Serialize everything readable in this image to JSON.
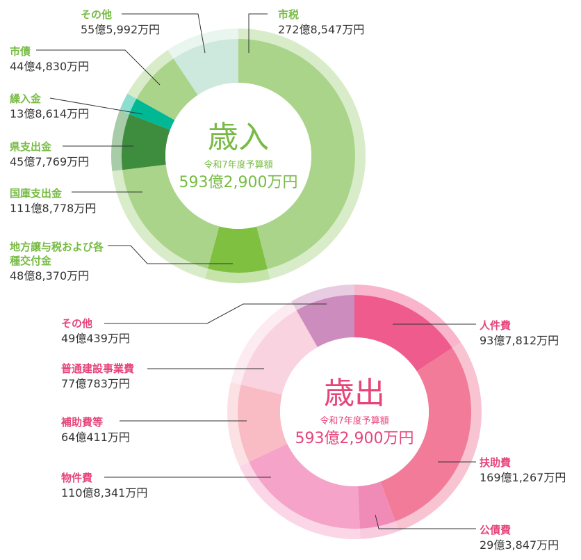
{
  "chart_data": [
    {
      "type": "pie",
      "title": "歳入",
      "subtitle": "令和7年度予算額",
      "total": "593億2,900万円",
      "accent": "#77bb44",
      "slices": [
        {
          "name": "市税",
          "amount": "272億8,547万円",
          "value": 2728547,
          "color": "#aad48a"
        },
        {
          "name": "地方譲与税および各種交付金",
          "amount": "48億8,370万円",
          "value": 488370,
          "color": "#80c041"
        },
        {
          "name": "国庫支出金",
          "amount": "111億8,778万円",
          "value": 1118778,
          "color": "#aad48a"
        },
        {
          "name": "県支出金",
          "amount": "45億7,769万円",
          "value": 457769,
          "color": "#3e8c3e"
        },
        {
          "name": "繰入金",
          "amount": "13億8,614万円",
          "value": 138614,
          "color": "#00b894"
        },
        {
          "name": "市債",
          "amount": "44億4,830万円",
          "value": 444830,
          "color": "#aad48a"
        },
        {
          "name": "その他",
          "amount": "55億5,992万円",
          "value": 555992,
          "color": "#cde8dc"
        }
      ]
    },
    {
      "type": "pie",
      "title": "歳出",
      "subtitle": "令和7年度予算額",
      "total": "593億2,900万円",
      "accent": "#e6457a",
      "slices": [
        {
          "name": "人件費",
          "amount": "93億7,812万円",
          "value": 937812,
          "color": "#ef5b8d"
        },
        {
          "name": "扶助費",
          "amount": "169億1,267万円",
          "value": 1691267,
          "color": "#f17b98"
        },
        {
          "name": "公債費",
          "amount": "29億3,847万円",
          "value": 293847,
          "color": "#f08bb8"
        },
        {
          "name": "物件費",
          "amount": "110億8,341万円",
          "value": 1108341,
          "color": "#f6a3c9"
        },
        {
          "name": "補助費等",
          "amount": "64億411万円",
          "value": 640411,
          "color": "#f9bcc4"
        },
        {
          "name": "普通建設事業費",
          "amount": "77億783万円",
          "value": 770783,
          "color": "#fad3e1"
        },
        {
          "name": "その他",
          "amount": "49億439万円",
          "value": 490439,
          "color": "#cc8dbe"
        }
      ]
    }
  ]
}
